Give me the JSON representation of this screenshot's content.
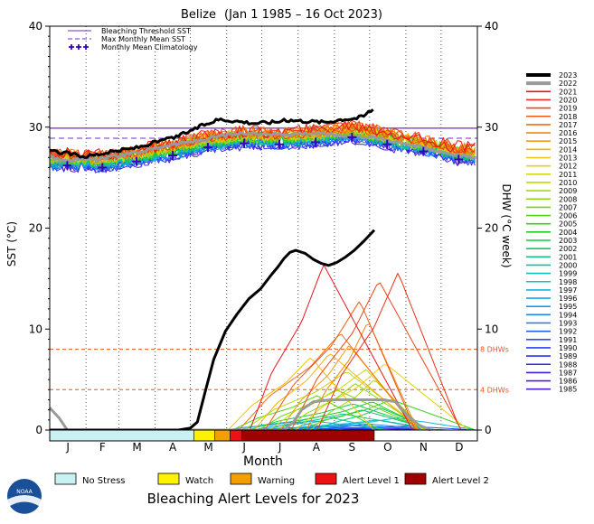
{
  "chart_data": {
    "type": "line",
    "title": "Belize",
    "date_range": "(Jan 1 1985 – 16 Oct 2023)",
    "xlabel": "Month",
    "ylabel_left": "SST (°C)",
    "ylabel_right": "DHW (°C week)",
    "ylim": [
      0,
      40
    ],
    "yticks": [
      0,
      10,
      20,
      30,
      40
    ],
    "month_labels": [
      "J",
      "F",
      "M",
      "A",
      "M",
      "J",
      "J",
      "A",
      "S",
      "O",
      "N",
      "D"
    ],
    "month_starts": [
      0,
      31,
      59,
      90,
      120,
      151,
      181,
      212,
      243,
      273,
      304,
      334,
      365
    ],
    "xlim": [
      0,
      365
    ],
    "bleaching_threshold_sst": 29.9,
    "max_monthly_mean_sst": 28.9,
    "dhw_levels": [
      {
        "value": 8,
        "label": "8 DHWs"
      },
      {
        "value": 4,
        "label": "4 DHWs"
      }
    ],
    "legend": [
      {
        "label": "Bleaching Threshold SST",
        "style": "solid",
        "color": "#6a2fd0"
      },
      {
        "label": "Max Monthly Mean SST",
        "style": "dashed",
        "color": "#6a2fd0"
      },
      {
        "label": "Monthly Mean Climatology",
        "style": "plus",
        "color": "#3a00b8"
      }
    ],
    "monthly_climatology": [
      {
        "day": 15,
        "value": 26.2
      },
      {
        "day": 45,
        "value": 26.0
      },
      {
        "day": 74,
        "value": 26.6
      },
      {
        "day": 105,
        "value": 27.2
      },
      {
        "day": 135,
        "value": 28.0
      },
      {
        "day": 166,
        "value": 28.4
      },
      {
        "day": 196,
        "value": 28.3
      },
      {
        "day": 227,
        "value": 28.5
      },
      {
        "day": 258,
        "value": 29.0
      },
      {
        "day": 288,
        "value": 28.3
      },
      {
        "day": 319,
        "value": 27.6
      },
      {
        "day": 349,
        "value": 26.8
      }
    ],
    "years": [
      "2023",
      "2022",
      "2021",
      "2020",
      "2019",
      "2018",
      "2017",
      "2016",
      "2015",
      "2014",
      "2013",
      "2012",
      "2011",
      "2010",
      "2009",
      "2008",
      "2007",
      "2006",
      "2005",
      "2004",
      "2003",
      "2002",
      "2001",
      "2000",
      "1999",
      "1998",
      "1997",
      "1996",
      "1995",
      "1994",
      "1993",
      "1992",
      "1991",
      "1990",
      "1989",
      "1988",
      "1987",
      "1986",
      "1985"
    ],
    "year_colors": [
      "#000000",
      "#9a9a9a",
      "#e8141a",
      "#ea2f16",
      "#ed4415",
      "#ef5a13",
      "#f26e11",
      "#f4840f",
      "#f79a0d",
      "#f8b00c",
      "#f3c20c",
      "#e8d00e",
      "#d6d80f",
      "#bfd80f",
      "#a5d80f",
      "#8bd80f",
      "#6fd811",
      "#52d514",
      "#35d21a",
      "#1ece26",
      "#14c944",
      "#12c660",
      "#11c37e",
      "#10c199",
      "#10bfb6",
      "#12bcd0",
      "#14b4e2",
      "#17a7ea",
      "#1a97ee",
      "#1d85f0",
      "#2072f0",
      "#2360ef",
      "#274fed",
      "#2a3feb",
      "#2e32e8",
      "#3528e5",
      "#3f22e2",
      "#4a1fdf",
      "#561cdc"
    ],
    "sst_2023": [
      [
        0,
        27.6
      ],
      [
        10,
        27.5
      ],
      [
        20,
        27.3
      ],
      [
        30,
        27.1
      ],
      [
        45,
        27.4
      ],
      [
        60,
        27.7
      ],
      [
        75,
        28.0
      ],
      [
        90,
        28.5
      ],
      [
        105,
        28.9
      ],
      [
        115,
        29.4
      ],
      [
        125,
        29.9
      ],
      [
        135,
        30.4
      ],
      [
        145,
        30.8
      ],
      [
        160,
        30.6
      ],
      [
        175,
        30.4
      ],
      [
        190,
        30.5
      ],
      [
        205,
        30.7
      ],
      [
        220,
        30.6
      ],
      [
        235,
        30.5
      ],
      [
        250,
        30.8
      ],
      [
        262,
        30.9
      ],
      [
        268,
        31.1
      ],
      [
        273,
        31.6
      ],
      [
        277,
        31.8
      ]
    ],
    "sst_2022": [
      [
        0,
        27.0
      ],
      [
        15,
        26.8
      ],
      [
        30,
        26.7
      ],
      [
        50,
        27.0
      ],
      [
        75,
        27.5
      ],
      [
        100,
        28.2
      ],
      [
        125,
        28.6
      ],
      [
        150,
        29.2
      ],
      [
        175,
        29.4
      ],
      [
        200,
        29.3
      ],
      [
        225,
        29.4
      ],
      [
        250,
        29.2
      ],
      [
        275,
        29.0
      ],
      [
        300,
        28.5
      ],
      [
        325,
        27.8
      ],
      [
        350,
        27.2
      ],
      [
        365,
        26.9
      ]
    ],
    "dhw_2023": [
      [
        0,
        0
      ],
      [
        110,
        0
      ],
      [
        120,
        0.2
      ],
      [
        126,
        0.8
      ],
      [
        132,
        3.5
      ],
      [
        140,
        7
      ],
      [
        150,
        9.8
      ],
      [
        160,
        11.5
      ],
      [
        170,
        13
      ],
      [
        180,
        14
      ],
      [
        188,
        15.2
      ],
      [
        195,
        16.2
      ],
      [
        200,
        17.0
      ],
      [
        205,
        17.6
      ],
      [
        210,
        17.8
      ],
      [
        218,
        17.5
      ],
      [
        225,
        16.9
      ],
      [
        232,
        16.5
      ],
      [
        238,
        16.3
      ],
      [
        245,
        16.6
      ],
      [
        252,
        17.1
      ],
      [
        260,
        17.8
      ],
      [
        268,
        18.7
      ],
      [
        277,
        19.8
      ]
    ],
    "dhw_2022": [
      [
        0,
        2.2
      ],
      [
        8,
        1.2
      ],
      [
        15,
        0
      ],
      [
        200,
        0
      ],
      [
        208,
        0.8
      ],
      [
        215,
        2.0
      ],
      [
        225,
        2.8
      ],
      [
        240,
        3.0
      ],
      [
        270,
        3.0
      ],
      [
        285,
        3.0
      ],
      [
        295,
        2.8
      ],
      [
        305,
        1.5
      ],
      [
        315,
        0.5
      ],
      [
        325,
        0
      ]
    ],
    "peak_dhw_by_year": [
      19.8,
      3.0,
      16.4,
      15.6,
      14.8,
      12.8,
      9.6,
      10.8,
      8.4,
      7.6,
      7.2,
      6.6,
      6.0,
      5.8,
      5.0,
      4.6,
      4.0,
      3.4,
      3.0,
      2.8,
      2.6,
      2.2,
      2.0,
      1.6,
      1.4,
      1.2,
      1.0,
      0.9,
      0.8,
      0.6,
      0.5,
      0.4,
      0.4,
      0.3,
      0.3,
      0.2,
      0.2,
      0.1,
      0.1
    ],
    "alert_bar": [
      {
        "from": 0,
        "to": 123,
        "level": "No Stress"
      },
      {
        "from": 123,
        "to": 141,
        "level": "Watch"
      },
      {
        "from": 141,
        "to": 154,
        "level": "Warning"
      },
      {
        "from": 154,
        "to": 164,
        "level": "Alert Level 1"
      },
      {
        "from": 164,
        "to": 277,
        "level": "Alert Level 2"
      }
    ],
    "alert_legend": [
      {
        "label": "No Stress",
        "color": "#c8f2f2"
      },
      {
        "label": "Watch",
        "color": "#fff200"
      },
      {
        "label": "Warning",
        "color": "#f2a000"
      },
      {
        "label": "Alert Level 1",
        "color": "#ee1111"
      },
      {
        "label": "Alert Level 2",
        "color": "#a00000"
      }
    ],
    "footer_title": "Bleaching Alert Levels for 2023",
    "logo_text": "NOAA"
  }
}
